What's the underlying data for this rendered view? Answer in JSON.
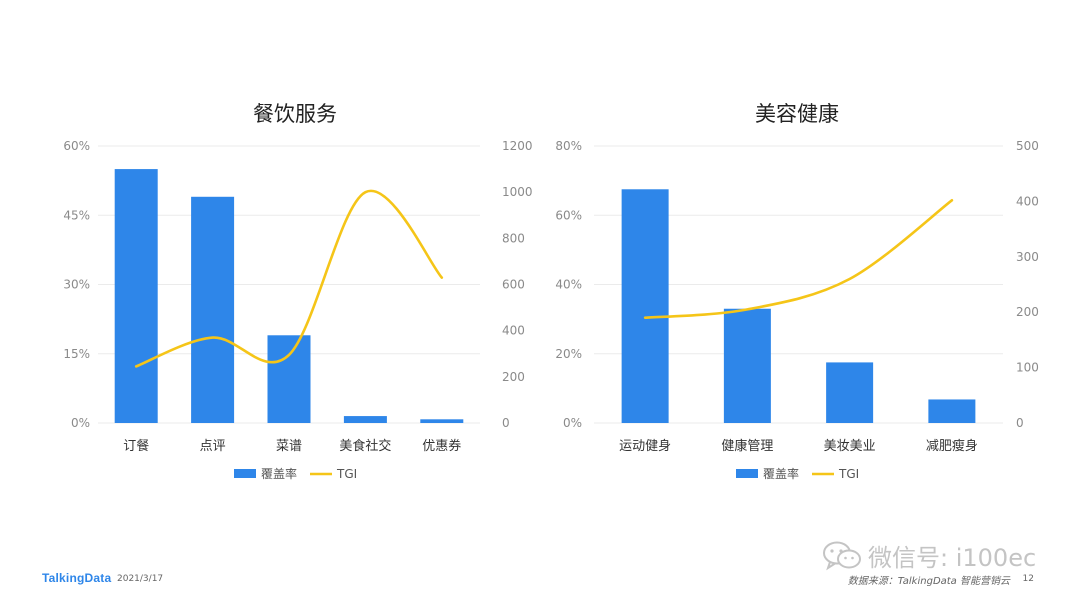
{
  "footer": {
    "brand": "TalkingData",
    "date": "2021/3/17",
    "source": "数据来源：TalkingData 智能营销云",
    "page": "12"
  },
  "watermark": {
    "text": "微信号: i100ec",
    "icon": "wechat-icon"
  },
  "colors": {
    "bar": "#2e86e9",
    "line": "#f5c518",
    "grid": "#ebebeb",
    "watermark": "#c4c4c4"
  },
  "chart_data": [
    {
      "type": "bar",
      "title": "餐饮服务",
      "categories": [
        "订餐",
        "点评",
        "菜谱",
        "美食社交",
        "优惠券"
      ],
      "series": [
        {
          "name": "覆盖率",
          "type": "bar",
          "axis": "left",
          "values": [
            0.55,
            0.49,
            0.19,
            0.015,
            0.008
          ]
        },
        {
          "name": "TGI",
          "type": "line",
          "axis": "right",
          "smooth": true,
          "values": [
            245,
            370,
            295,
            1000,
            630
          ]
        }
      ],
      "y_left": {
        "min": 0,
        "max": 0.6,
        "ticks": [
          "0%",
          "15%",
          "30%",
          "45%",
          "60%"
        ]
      },
      "y_right": {
        "min": 0,
        "max": 1200,
        "ticks": [
          "0",
          "200",
          "400",
          "600",
          "800",
          "1000",
          "1200"
        ]
      },
      "legend": {
        "position": "bottom",
        "entries": [
          "覆盖率",
          "TGI"
        ]
      },
      "grid": true
    },
    {
      "type": "bar",
      "title": "美容健康",
      "categories": [
        "运动健身",
        "健康管理",
        "美妆美业",
        "减肥瘦身"
      ],
      "series": [
        {
          "name": "覆盖率",
          "type": "bar",
          "axis": "left",
          "values": [
            0.675,
            0.33,
            0.175,
            0.068
          ]
        },
        {
          "name": "TGI",
          "type": "line",
          "axis": "right",
          "smooth": true,
          "values": [
            190,
            205,
            260,
            402
          ]
        }
      ],
      "y_left": {
        "min": 0,
        "max": 0.8,
        "ticks": [
          "0%",
          "20%",
          "40%",
          "60%",
          "80%"
        ]
      },
      "y_right": {
        "min": 0,
        "max": 500,
        "ticks": [
          "0",
          "100",
          "200",
          "300",
          "400",
          "500"
        ]
      },
      "legend": {
        "position": "bottom",
        "entries": [
          "覆盖率",
          "TGI"
        ]
      },
      "grid": true
    }
  ]
}
